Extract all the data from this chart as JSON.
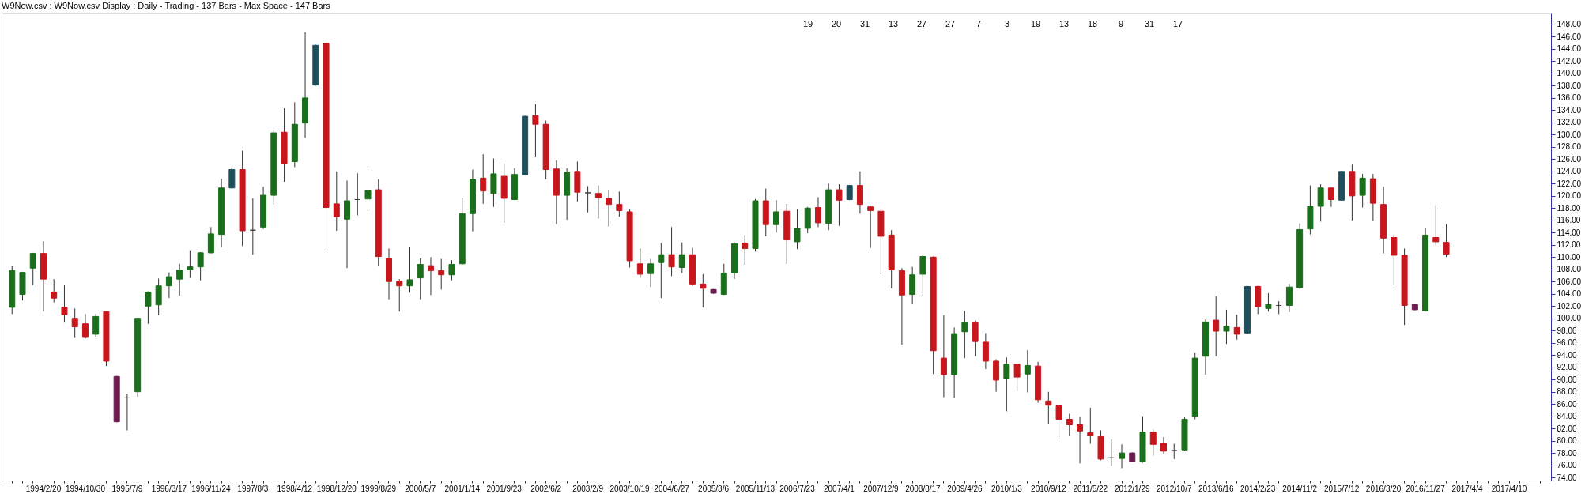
{
  "chart_data": {
    "type": "candlestick",
    "title": "W9Now.csv : W9Now.csv Display :  Daily  - Trading - 137 Bars -  Max Space - 147 Bars",
    "categories": [
      null,
      null,
      null,
      "1994/2/20",
      null,
      null,
      null,
      "1994/10/30",
      null,
      null,
      null,
      "1995/7/9",
      null,
      null,
      null,
      "1996/3/17",
      null,
      null,
      null,
      "1996/11/24",
      null,
      null,
      null,
      "1997/8/3",
      null,
      null,
      null,
      "1998/4/12",
      null,
      null,
      null,
      "1998/12/20",
      null,
      null,
      null,
      "1999/8/29",
      null,
      null,
      null,
      "2000/5/7",
      null,
      null,
      null,
      "2001/1/14",
      null,
      null,
      null,
      "2001/9/23",
      null,
      null,
      null,
      "2002/6/2",
      null,
      null,
      null,
      "2003/2/9",
      null,
      null,
      null,
      "2003/10/19",
      null,
      null,
      null,
      "2004/6/27",
      null,
      null,
      null,
      "2005/3/6",
      null,
      null,
      null,
      "2005/11/13",
      null,
      null,
      null,
      "2006/7/23",
      null,
      null,
      null,
      "2007/4/1",
      null,
      null,
      null,
      "2007/12/9",
      null,
      null,
      null,
      "2008/8/17",
      null,
      null,
      null,
      "2009/4/26",
      null,
      null,
      null,
      "2010/1/3",
      null,
      null,
      null,
      "2010/9/12",
      null,
      null,
      null,
      "2011/5/22",
      null,
      null,
      null,
      "2012/1/29",
      null,
      null,
      null,
      "2012/10/7",
      null,
      null,
      null,
      "2013/6/16",
      null,
      null,
      null,
      "2014/2/23",
      null,
      null,
      null,
      "2014/11/2",
      null,
      null,
      null,
      "2015/7/12",
      null,
      null,
      null,
      "2016/3/20",
      null,
      null,
      null,
      "2016/11/27",
      null,
      null,
      null,
      "2017/4/4",
      null,
      null,
      null,
      "2017/4/10",
      null,
      null,
      null
    ],
    "ohlc": [
      [
        101.8,
        108.6,
        100.7,
        107.8
      ],
      [
        103.9,
        107.6,
        102.9,
        107.5
      ],
      [
        108.2,
        110.7,
        105.4,
        110.6
      ],
      [
        110.6,
        112.6,
        101.1,
        106.4
      ],
      [
        104.3,
        106.4,
        102.6,
        103.3
      ],
      [
        101.8,
        105.5,
        99.3,
        100.6
      ],
      [
        100.0,
        101.6,
        96.9,
        98.6
      ],
      [
        99.1,
        100.7,
        96.7,
        97.0
      ],
      [
        97.4,
        100.7,
        97.0,
        100.3
      ],
      [
        101.1,
        101.1,
        92.2,
        93.0
      ],
      [
        90.5,
        90.6,
        83.0,
        83.1
      ],
      [
        87.0,
        87.7,
        81.7,
        87.0
      ],
      [
        88.0,
        100.1,
        87.2,
        100.0
      ],
      [
        102.0,
        104.4,
        99.1,
        104.3
      ],
      [
        102.2,
        106.5,
        100.5,
        105.3
      ],
      [
        105.3,
        107.5,
        103.3,
        106.8
      ],
      [
        106.4,
        108.9,
        103.7,
        107.9
      ],
      [
        107.9,
        111.1,
        106.6,
        108.4
      ],
      [
        108.4,
        110.8,
        106.2,
        110.7
      ],
      [
        110.7,
        114.9,
        110.6,
        113.8
      ],
      [
        113.7,
        122.8,
        111.6,
        121.3
      ],
      [
        121.3,
        124.5,
        121.2,
        124.3
      ],
      [
        124.3,
        127.4,
        111.8,
        114.3
      ],
      [
        114.4,
        119.6,
        110.4,
        114.4
      ],
      [
        114.9,
        121.5,
        114.6,
        120.1
      ],
      [
        120.1,
        130.8,
        118.6,
        130.3
      ],
      [
        130.4,
        134.3,
        122.3,
        125.2
      ],
      [
        125.6,
        135.3,
        124.7,
        131.7
      ],
      [
        131.9,
        146.7,
        129.5,
        136.0
      ],
      [
        138.1,
        144.7,
        138.0,
        144.6
      ],
      [
        144.9,
        145.2,
        111.6,
        118.1
      ],
      [
        118.7,
        124.0,
        114.3,
        116.6
      ],
      [
        116.2,
        122.5,
        108.2,
        119.2
      ],
      [
        119.4,
        123.7,
        116.8,
        119.4
      ],
      [
        119.5,
        124.4,
        117.5,
        120.9
      ],
      [
        121.0,
        122.7,
        108.6,
        110.1
      ],
      [
        109.8,
        111.4,
        103.1,
        106.0
      ],
      [
        106.1,
        106.4,
        101.1,
        105.3
      ],
      [
        105.3,
        111.7,
        104.2,
        106.3
      ],
      [
        106.6,
        109.8,
        103.1,
        108.8
      ],
      [
        108.6,
        110.0,
        103.8,
        107.8
      ],
      [
        107.8,
        109.7,
        104.7,
        107.1
      ],
      [
        107.1,
        109.5,
        106.2,
        108.8
      ],
      [
        108.9,
        119.7,
        108.8,
        117.1
      ],
      [
        117.1,
        124.3,
        114.2,
        122.7
      ],
      [
        122.9,
        126.8,
        118.7,
        120.8
      ],
      [
        120.4,
        126.1,
        118.2,
        123.6
      ],
      [
        123.2,
        125.2,
        115.6,
        119.6
      ],
      [
        119.4,
        124.5,
        119.4,
        123.5
      ],
      [
        123.4,
        133.1,
        123.3,
        133.0
      ],
      [
        133.1,
        135.0,
        126.3,
        131.7
      ],
      [
        131.7,
        132.3,
        122.7,
        124.3
      ],
      [
        124.4,
        125.8,
        115.4,
        120.1
      ],
      [
        120.1,
        124.5,
        116.1,
        123.9
      ],
      [
        124.0,
        125.6,
        119.1,
        120.6
      ],
      [
        120.5,
        121.6,
        117.3,
        120.5
      ],
      [
        120.4,
        121.7,
        116.3,
        119.7
      ],
      [
        119.6,
        121.0,
        115.0,
        118.6
      ],
      [
        118.6,
        120.7,
        116.6,
        117.6
      ],
      [
        117.4,
        117.8,
        108.3,
        109.4
      ],
      [
        108.9,
        111.4,
        106.6,
        107.2
      ],
      [
        107.3,
        109.7,
        105.1,
        108.9
      ],
      [
        109.1,
        112.3,
        103.3,
        110.4
      ],
      [
        110.4,
        114.9,
        106.9,
        108.4
      ],
      [
        108.3,
        112.4,
        107.4,
        110.4
      ],
      [
        110.4,
        111.5,
        105.3,
        105.6
      ],
      [
        105.6,
        107.2,
        101.8,
        104.9
      ],
      [
        104.7,
        104.8,
        104.0,
        104.1
      ],
      [
        103.9,
        108.9,
        103.8,
        107.4
      ],
      [
        107.4,
        112.4,
        106.4,
        112.2
      ],
      [
        112.3,
        113.6,
        108.7,
        111.4
      ],
      [
        111.4,
        119.5,
        110.9,
        119.2
      ],
      [
        119.2,
        121.2,
        113.4,
        115.3
      ],
      [
        115.3,
        119.3,
        114.0,
        117.4
      ],
      [
        117.5,
        118.7,
        108.9,
        112.8
      ],
      [
        112.5,
        117.8,
        111.3,
        114.7
      ],
      [
        114.7,
        118.2,
        113.9,
        118.0
      ],
      [
        118.1,
        119.8,
        114.9,
        115.6
      ],
      [
        115.5,
        122.0,
        114.4,
        121.0
      ],
      [
        121.0,
        121.9,
        115.1,
        119.3
      ],
      [
        119.4,
        121.8,
        119.3,
        121.7
      ],
      [
        121.7,
        124.0,
        117.1,
        118.6
      ],
      [
        118.2,
        118.4,
        111.5,
        117.6
      ],
      [
        117.5,
        117.8,
        107.2,
        113.4
      ],
      [
        113.6,
        114.4,
        104.9,
        107.9
      ],
      [
        107.8,
        108.2,
        95.7,
        103.8
      ],
      [
        103.9,
        108.4,
        102.4,
        107.1
      ],
      [
        107.2,
        110.3,
        103.7,
        110.1
      ],
      [
        110.0,
        110.1,
        90.9,
        94.7
      ],
      [
        93.5,
        100.5,
        87.1,
        90.8
      ],
      [
        90.8,
        98.5,
        87.0,
        97.5
      ],
      [
        97.8,
        101.2,
        93.5,
        99.3
      ],
      [
        99.3,
        99.6,
        93.8,
        96.2
      ],
      [
        96.1,
        97.6,
        91.7,
        93.0
      ],
      [
        93.0,
        93.3,
        88.0,
        89.9
      ],
      [
        90.1,
        93.6,
        84.8,
        92.5
      ],
      [
        92.5,
        92.6,
        88.0,
        90.4
      ],
      [
        90.9,
        94.8,
        87.9,
        92.3
      ],
      [
        92.2,
        92.9,
        86.2,
        86.7
      ],
      [
        86.5,
        88.0,
        82.8,
        85.8
      ],
      [
        85.7,
        85.8,
        80.2,
        83.5
      ],
      [
        83.5,
        84.4,
        80.8,
        82.6
      ],
      [
        82.6,
        83.9,
        76.3,
        81.6
      ],
      [
        81.3,
        85.4,
        79.5,
        80.8
      ],
      [
        80.7,
        81.7,
        76.8,
        77.0
      ],
      [
        77.2,
        80.2,
        75.9,
        77.2
      ],
      [
        77.1,
        79.4,
        75.5,
        78.0
      ],
      [
        78.0,
        78.1,
        76.5,
        76.6
      ],
      [
        76.6,
        84.0,
        76.4,
        81.4
      ],
      [
        81.4,
        81.8,
        77.6,
        79.4
      ],
      [
        79.6,
        80.6,
        77.9,
        78.3
      ],
      [
        78.4,
        79.5,
        77.0,
        78.4
      ],
      [
        78.5,
        83.8,
        78.3,
        83.5
      ],
      [
        84.0,
        94.4,
        83.5,
        93.5
      ],
      [
        93.8,
        99.8,
        90.8,
        99.4
      ],
      [
        99.7,
        103.6,
        93.8,
        97.9
      ],
      [
        97.9,
        101.4,
        95.8,
        98.7
      ],
      [
        98.5,
        100.6,
        96.5,
        97.4
      ],
      [
        97.6,
        105.3,
        97.5,
        105.2
      ],
      [
        105.2,
        105.3,
        100.7,
        101.9
      ],
      [
        101.6,
        104.1,
        101.1,
        102.3
      ],
      [
        102.1,
        102.8,
        100.7,
        102.1
      ],
      [
        102.1,
        105.6,
        101.0,
        105.1
      ],
      [
        105.0,
        115.5,
        104.8,
        114.5
      ],
      [
        114.6,
        121.7,
        113.7,
        118.3
      ],
      [
        118.3,
        121.9,
        115.8,
        121.3
      ],
      [
        121.3,
        121.3,
        118.2,
        119.4
      ],
      [
        119.3,
        124.1,
        119.2,
        124.0
      ],
      [
        124.0,
        125.1,
        116.0,
        120.0
      ],
      [
        120.1,
        123.6,
        118.1,
        122.9
      ],
      [
        122.8,
        123.6,
        115.9,
        118.8
      ],
      [
        118.6,
        121.5,
        110.6,
        113.1
      ],
      [
        113.2,
        113.7,
        105.4,
        110.3
      ],
      [
        110.3,
        111.4,
        98.9,
        102.1
      ],
      [
        102.3,
        102.4,
        101.3,
        101.4
      ],
      [
        101.2,
        114.8,
        101.1,
        113.6
      ],
      [
        113.2,
        118.5,
        111.9,
        112.5
      ],
      [
        112.4,
        115.4,
        110.0,
        110.5
      ],
      null,
      null,
      null,
      null,
      null,
      null,
      null,
      null,
      null
    ],
    "colors": [
      "#1b6e1b",
      "#1b6e1b",
      "#1b6e1b",
      "#c8161d",
      "#c8161d",
      "#c8161d",
      "#c8161d",
      "#c8161d",
      "#1b6e1b",
      "#c8161d",
      "#6b1d4f",
      "#404040",
      "#1b6e1b",
      "#1b6e1b",
      "#1b6e1b",
      "#1b6e1b",
      "#1b6e1b",
      "#1b6e1b",
      "#1b6e1b",
      "#1b6e1b",
      "#1b6e1b",
      "#1e4f5c",
      "#c8161d",
      "#404040",
      "#1b6e1b",
      "#1b6e1b",
      "#c8161d",
      "#1b6e1b",
      "#1b6e1b",
      "#1e4f5c",
      "#c8161d",
      "#c8161d",
      "#1b6e1b",
      "#404040",
      "#1b6e1b",
      "#c8161d",
      "#c8161d",
      "#c8161d",
      "#1b6e1b",
      "#1b6e1b",
      "#c8161d",
      "#c8161d",
      "#1b6e1b",
      "#1b6e1b",
      "#1b6e1b",
      "#c8161d",
      "#1b6e1b",
      "#c8161d",
      "#1b6e1b",
      "#1e4f5c",
      "#c8161d",
      "#c8161d",
      "#c8161d",
      "#1b6e1b",
      "#c8161d",
      "#404040",
      "#c8161d",
      "#c8161d",
      "#c8161d",
      "#c8161d",
      "#c8161d",
      "#1b6e1b",
      "#1b6e1b",
      "#c8161d",
      "#1b6e1b",
      "#c8161d",
      "#c8161d",
      "#6b1d4f",
      "#1b6e1b",
      "#1b6e1b",
      "#c8161d",
      "#1b6e1b",
      "#c8161d",
      "#1b6e1b",
      "#c8161d",
      "#1b6e1b",
      "#1b6e1b",
      "#c8161d",
      "#1b6e1b",
      "#c8161d",
      "#1e4f5c",
      "#c8161d",
      "#c8161d",
      "#c8161d",
      "#c8161d",
      "#c8161d",
      "#1b6e1b",
      "#1b6e1b",
      "#c8161d",
      "#c8161d",
      "#1b6e1b",
      "#1b6e1b",
      "#c8161d",
      "#c8161d",
      "#c8161d",
      "#1b6e1b",
      "#c8161d",
      "#1b6e1b",
      "#c8161d",
      "#c8161d",
      "#c8161d",
      "#c8161d",
      "#c8161d",
      "#c8161d",
      "#c8161d",
      "#404040",
      "#1b6e1b",
      "#6b1d4f",
      "#1b6e1b",
      "#c8161d",
      "#c8161d",
      "#404040",
      "#1b6e1b",
      "#1b6e1b",
      "#1b6e1b",
      "#c8161d",
      "#1b6e1b",
      "#c8161d",
      "#1e4f5c",
      "#c8161d",
      "#1b6e1b",
      "#404040",
      "#1b6e1b",
      "#1b6e1b",
      "#1b6e1b",
      "#1b6e1b",
      "#c8161d",
      "#1e4f5c",
      "#c8161d",
      "#1b6e1b",
      "#c8161d",
      "#c8161d",
      "#c8161d",
      "#c8161d",
      "#6b1d4f",
      "#1b6e1b",
      "#c8161d",
      "#c8161d",
      null,
      null,
      null,
      null,
      null,
      null,
      null,
      null,
      null
    ],
    "ylim": [
      73.5,
      149.8
    ],
    "yticks": [
      {
        "value": 74,
        "label": "74.00"
      },
      {
        "value": 76,
        "label": "76.00"
      },
      {
        "value": 78,
        "label": "78.00"
      },
      {
        "value": 80,
        "label": "80.00"
      },
      {
        "value": 82,
        "label": "82.00"
      },
      {
        "value": 84,
        "label": "84.00"
      },
      {
        "value": 86,
        "label": "86.00"
      },
      {
        "value": 88,
        "label": "88.00"
      },
      {
        "value": 90,
        "label": "90.00"
      },
      {
        "value": 92,
        "label": "92.00"
      },
      {
        "value": 94,
        "label": "94.00"
      },
      {
        "value": 96,
        "label": "96.00"
      },
      {
        "value": 98,
        "label": "98.00"
      },
      {
        "value": 100,
        "label": "100.00"
      },
      {
        "value": 102,
        "label": "102.00"
      },
      {
        "value": 104,
        "label": "104.00"
      },
      {
        "value": 106,
        "label": "106.00"
      },
      {
        "value": 108,
        "label": "108.00"
      },
      {
        "value": 110,
        "label": "110.00"
      },
      {
        "value": 112,
        "label": "112.00"
      },
      {
        "value": 114,
        "label": "114.00"
      },
      {
        "value": 116,
        "label": "116.00"
      },
      {
        "value": 118,
        "label": "118.00"
      },
      {
        "value": 120,
        "label": "120.00"
      },
      {
        "value": 122,
        "label": "122.00"
      },
      {
        "value": 124,
        "label": "124.00"
      },
      {
        "value": 126,
        "label": "126.00"
      },
      {
        "value": 128,
        "label": "128.00"
      },
      {
        "value": 130,
        "label": "130.00"
      },
      {
        "value": 132,
        "label": "132.00"
      },
      {
        "value": 134,
        "label": "134.00"
      },
      {
        "value": 136,
        "label": "136.00"
      },
      {
        "value": 138,
        "label": "138.00"
      },
      {
        "value": 140,
        "label": "140.00"
      },
      {
        "value": 142,
        "label": "142.00"
      },
      {
        "value": 144,
        "label": "144.00"
      },
      {
        "value": 146,
        "label": "146.00"
      },
      {
        "value": 148,
        "label": "148.00"
      }
    ],
    "annotations": [
      "19",
      "20",
      "31",
      "13",
      "27",
      "27",
      "7",
      "3",
      "19",
      "13",
      "18",
      "9",
      "31",
      "17"
    ],
    "grid": false
  }
}
